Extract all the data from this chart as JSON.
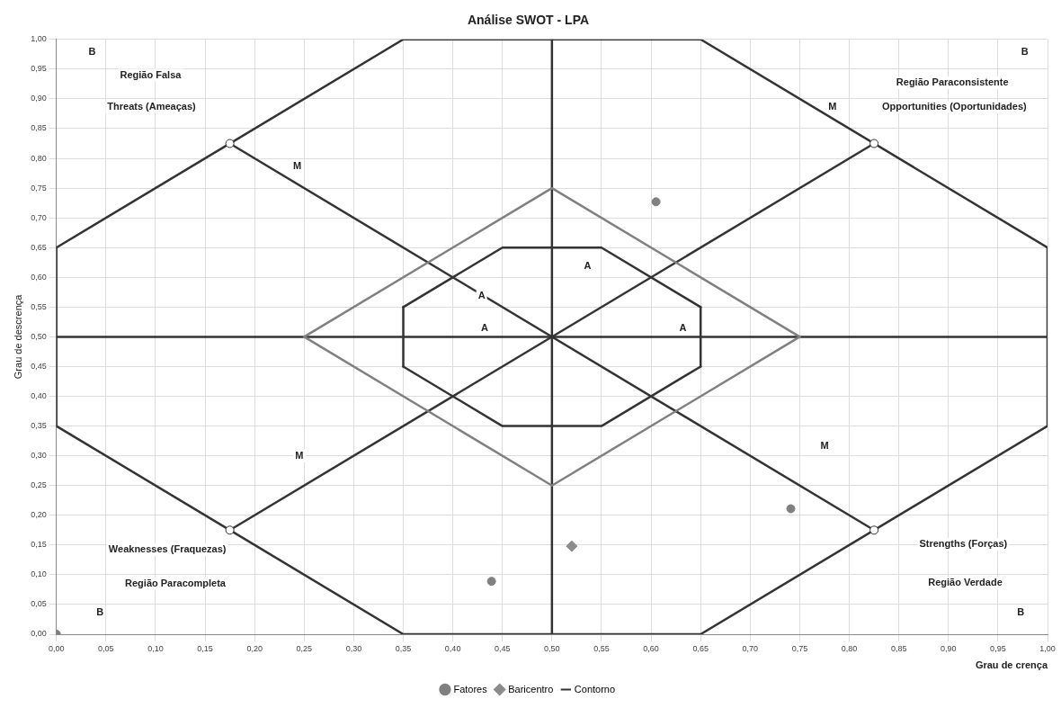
{
  "chart_data": {
    "type": "scatter",
    "title": "Análise SWOT - LPA",
    "xlabel": "Grau de crença",
    "ylabel": "Grau de descrença",
    "xlim": [
      0,
      1
    ],
    "ylim": [
      0,
      1
    ],
    "xticks": [
      {
        "value": 0,
        "label": "0,00"
      },
      {
        "value": 0.05,
        "label": "0,05"
      },
      {
        "value": 0.1,
        "label": "0,10"
      },
      {
        "value": 0.15,
        "label": "0,15"
      },
      {
        "value": 0.2,
        "label": "0,20"
      },
      {
        "value": 0.25,
        "label": "0,25"
      },
      {
        "value": 0.3,
        "label": "0,30"
      },
      {
        "value": 0.35,
        "label": "0,35"
      },
      {
        "value": 0.4,
        "label": "0,40"
      },
      {
        "value": 0.45,
        "label": "0,45"
      },
      {
        "value": 0.5,
        "label": "0,50"
      },
      {
        "value": 0.55,
        "label": "0,55"
      },
      {
        "value": 0.6,
        "label": "0,60"
      },
      {
        "value": 0.65,
        "label": "0,65"
      },
      {
        "value": 0.7,
        "label": "0,70"
      },
      {
        "value": 0.75,
        "label": "0,75"
      },
      {
        "value": 0.8,
        "label": "0,80"
      },
      {
        "value": 0.85,
        "label": "0,85"
      },
      {
        "value": 0.9,
        "label": "0,90"
      },
      {
        "value": 0.95,
        "label": "0,95"
      },
      {
        "value": 1,
        "label": "1,00"
      }
    ],
    "yticks": [
      {
        "value": 0,
        "label": "0,00"
      },
      {
        "value": 0.05,
        "label": "0,05"
      },
      {
        "value": 0.1,
        "label": "0,10"
      },
      {
        "value": 0.15,
        "label": "0,15"
      },
      {
        "value": 0.2,
        "label": "0,20"
      },
      {
        "value": 0.25,
        "label": "0,25"
      },
      {
        "value": 0.3,
        "label": "0,30"
      },
      {
        "value": 0.35,
        "label": "0,35"
      },
      {
        "value": 0.4,
        "label": "0,40"
      },
      {
        "value": 0.45,
        "label": "0,45"
      },
      {
        "value": 0.5,
        "label": "0,50"
      },
      {
        "value": 0.55,
        "label": "0,55"
      },
      {
        "value": 0.6,
        "label": "0,60"
      },
      {
        "value": 0.65,
        "label": "0,65"
      },
      {
        "value": 0.7,
        "label": "0,70"
      },
      {
        "value": 0.75,
        "label": "0,75"
      },
      {
        "value": 0.8,
        "label": "0,80"
      },
      {
        "value": 0.85,
        "label": "0,85"
      },
      {
        "value": 0.9,
        "label": "0,90"
      },
      {
        "value": 0.95,
        "label": "0,95"
      },
      {
        "value": 1,
        "label": "1,00"
      }
    ],
    "grid": true,
    "legend": "bottom",
    "series": [
      {
        "name": "Fatores",
        "color": "#808080",
        "marker": "circle",
        "x": [
          0.605,
          0.741,
          0.439,
          0
        ],
        "values": [
          0.727,
          0.211,
          0.089,
          0
        ]
      },
      {
        "name": "Baricentro",
        "color": "#8c8c8c",
        "marker": "diamond",
        "x": [
          0.52
        ],
        "values": [
          0.148
        ]
      },
      {
        "type": "line",
        "name": "Contorno",
        "color": "#333333",
        "marker": "none",
        "x": [
          0,
          0.35,
          0.65,
          1
        ],
        "values": [
          0.65,
          1,
          1,
          0.65
        ]
      },
      {
        "type": "line",
        "color": "#333333",
        "marker": "none",
        "x": [
          0,
          0.35,
          0.65,
          1
        ],
        "values": [
          0.35,
          0,
          0,
          0.35
        ]
      },
      {
        "type": "line",
        "color": "#333333",
        "marker": "none",
        "x": [
          0,
          0
        ],
        "values": [
          0.35,
          0.65
        ]
      },
      {
        "type": "line",
        "color": "#333333",
        "marker": "none",
        "x": [
          1,
          1
        ],
        "values": [
          0.35,
          0.65
        ]
      },
      {
        "type": "line",
        "color": "#333333",
        "marker": "none",
        "x": [
          0.5,
          0.5
        ],
        "values": [
          0,
          1
        ]
      },
      {
        "type": "line",
        "color": "#333333",
        "marker": "none",
        "x": [
          0,
          1
        ],
        "values": [
          0.5,
          0.5
        ]
      },
      {
        "type": "line",
        "color": "#333333",
        "marker": "none",
        "x": [
          0.175,
          0.825
        ],
        "values": [
          0.825,
          0.175
        ]
      },
      {
        "type": "line",
        "color": "#333333",
        "marker": "none",
        "x": [
          0.175,
          0.825
        ],
        "values": [
          0.175,
          0.825
        ]
      },
      {
        "type": "line",
        "color": "#333333",
        "marker": "none",
        "x": [
          0.35,
          0.45,
          0.55,
          0.65
        ],
        "values": [
          0.55,
          0.65,
          0.65,
          0.55
        ]
      },
      {
        "type": "line",
        "color": "#333333",
        "marker": "none",
        "x": [
          0.35,
          0.45,
          0.55,
          0.65
        ],
        "values": [
          0.45,
          0.35,
          0.35,
          0.45
        ]
      },
      {
        "type": "line",
        "color": "#333333",
        "marker": "none",
        "x": [
          0.35,
          0.35
        ],
        "values": [
          0.45,
          0.55
        ]
      },
      {
        "type": "line",
        "color": "#333333",
        "marker": "none",
        "x": [
          0.65,
          0.65
        ],
        "values": [
          0.45,
          0.55
        ]
      },
      {
        "type": "line",
        "color": "#808080",
        "marker": "none",
        "x": [
          0.25,
          0.5,
          0.75
        ],
        "values": [
          0.5,
          0.75,
          0.5
        ]
      },
      {
        "type": "line",
        "color": "#808080",
        "marker": "none",
        "x": [
          0.25,
          0.5,
          0.75
        ],
        "values": [
          0.5,
          0.25,
          0.5
        ]
      },
      {
        "color": "#ffffff",
        "marker": "circle",
        "x": [
          0.175,
          0.825,
          0.175,
          0.825
        ],
        "values": [
          0.825,
          0.175,
          0.175,
          0.825
        ]
      }
    ],
    "annotations": [
      "B",
      "Região Falsa",
      "Threats (Ameaças)",
      "B",
      "Região Paraconsistente",
      "Opportunities (Oportunidades)",
      "M",
      "M",
      "A",
      "A",
      "A",
      "A",
      "M",
      "M",
      "Weaknesses (Fraquezas)",
      "Região Paracompleta",
      "B",
      "Strengths (Forças)",
      "Região Verdade",
      "B"
    ]
  }
}
